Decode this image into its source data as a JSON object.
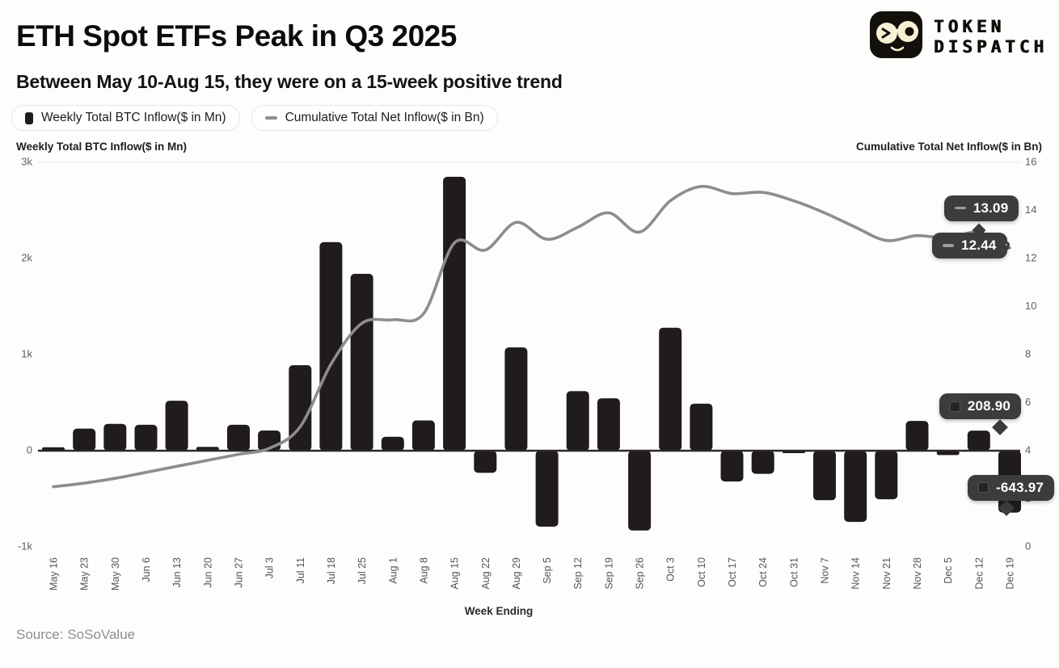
{
  "header": {
    "title": "ETH Spot ETFs Peak in Q3 2025",
    "subtitle": "Between May 10-Aug 15, they were on a 15-week positive trend",
    "logo": {
      "line1": "TOKEN",
      "line2": "DISPATCH"
    }
  },
  "legend": [
    {
      "label": "Weekly Total BTC Inflow($ in Mn)",
      "marker": "bar-swatch"
    },
    {
      "label": "Cumulative Total Net Inflow($ in Bn)",
      "marker": "line-swatch"
    }
  ],
  "footer": {
    "source": "Source: SoSoValue"
  },
  "colors": {
    "background": "#fdfdfc",
    "bar": "#201c1b",
    "line": "#8d8d8d",
    "badge": "#3c3c3e",
    "axis": "#2c2825",
    "tick_text": "#5f5f5f",
    "grid": "#ededea"
  },
  "chart_data": {
    "type": "bar+line",
    "title": "ETH Spot ETFs Peak in Q3 2025",
    "x_axis_title": "Week Ending",
    "left_axis": {
      "title": "Weekly Total BTC Inflow($ in Mn)",
      "unit": "$ in Mn",
      "range": [
        -1000,
        3000
      ],
      "ticks": [
        {
          "label": "3k",
          "value": 3000
        },
        {
          "label": "2k",
          "value": 2000
        },
        {
          "label": "1k",
          "value": 1000
        },
        {
          "label": "0",
          "value": 0
        },
        {
          "label": "-1k",
          "value": -1000
        }
      ]
    },
    "right_axis": {
      "title": "Cumulative Total Net Inflow($ in Bn)",
      "unit": "$ in Bn",
      "range": [
        0,
        16
      ],
      "ticks": [
        {
          "label": "16",
          "value": 16
        },
        {
          "label": "14",
          "value": 14
        },
        {
          "label": "12",
          "value": 12
        },
        {
          "label": "10",
          "value": 10
        },
        {
          "label": "8",
          "value": 8
        },
        {
          "label": "6",
          "value": 6
        },
        {
          "label": "4",
          "value": 4
        },
        {
          "label": "2",
          "value": 2
        },
        {
          "label": "0",
          "value": 0
        }
      ]
    },
    "categories": [
      "May 16",
      "May 23",
      "May 30",
      "Jun 6",
      "Jun 13",
      "Jun 20",
      "Jun 27",
      "Jul 3",
      "Jul 11",
      "Jul 18",
      "Jul 25",
      "Aug 1",
      "Aug 8",
      "Aug 15",
      "Aug 22",
      "Aug 29",
      "Sep 5",
      "Sep 12",
      "Sep 19",
      "Sep 26",
      "Oct 3",
      "Oct 10",
      "Oct 17",
      "Oct 24",
      "Oct 31",
      "Nov 7",
      "Nov 14",
      "Nov 21",
      "Nov 28",
      "Dec 5",
      "Dec 12",
      "Dec 19"
    ],
    "series": [
      {
        "name": "Weekly Total BTC Inflow($ in Mn)",
        "type": "bar",
        "axis": "left",
        "values": [
          35,
          230,
          280,
          270,
          520,
          40,
          270,
          210,
          890,
          2170,
          1840,
          145,
          315,
          2850,
          -230,
          1075,
          -790,
          620,
          545,
          -830,
          1280,
          490,
          -320,
          -240,
          -25,
          -515,
          -740,
          -505,
          310,
          -45,
          208.9,
          -643.97
        ]
      },
      {
        "name": "Cumulative Total Net Inflow($ in Bn)",
        "type": "line",
        "axis": "right",
        "values": [
          2.5,
          2.65,
          2.85,
          3.1,
          3.35,
          3.6,
          3.85,
          4.1,
          5.0,
          7.6,
          9.3,
          9.45,
          9.7,
          12.65,
          12.35,
          13.5,
          12.8,
          13.3,
          13.9,
          13.1,
          14.4,
          15.0,
          14.7,
          14.75,
          14.4,
          13.9,
          13.3,
          12.75,
          12.95,
          12.85,
          13.09,
          12.44
        ]
      }
    ],
    "annotations": [
      {
        "series": "line",
        "category": "Dec 12",
        "value": 13.09,
        "label": "13.09"
      },
      {
        "series": "line",
        "category": "Dec 19",
        "value": 12.44,
        "label": "12.44"
      },
      {
        "series": "bar",
        "category": "Dec 12",
        "value": 208.9,
        "label": "208.90"
      },
      {
        "series": "bar",
        "category": "Dec 19",
        "value": -643.97,
        "label": "-643.97"
      }
    ],
    "layout_hints": {
      "grid": "top-line-only",
      "legend_position": "top-left",
      "bar_color": "#201c1b",
      "line_color": "#8d8d8d"
    }
  }
}
